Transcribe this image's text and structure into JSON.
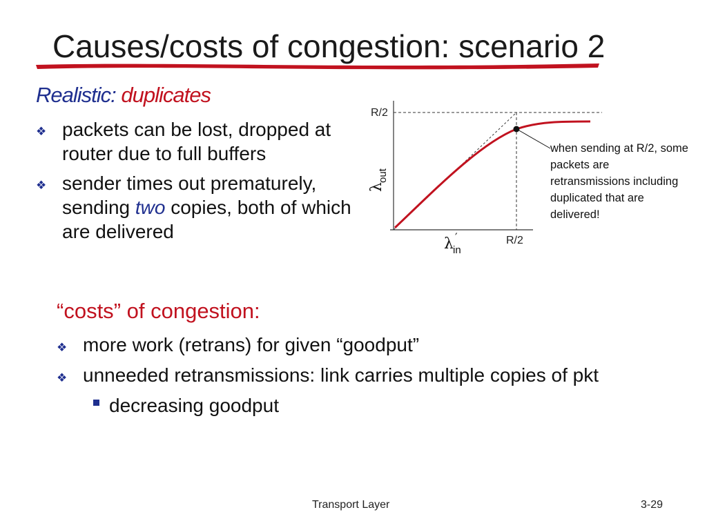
{
  "slide": {
    "title": "Causes/costs of congestion: scenario 2",
    "subhead_prefix": "Realistic:",
    "subhead_suffix": "duplicates",
    "bullets": [
      {
        "text": "packets can be lost, dropped at router due  to full buffers"
      },
      {
        "pre": "sender times out prematurely, sending ",
        "em": "two",
        "post": " copies, both of which are delivered"
      }
    ],
    "costs": {
      "q_open": "“",
      "word": "costs",
      "q_close": "”",
      "rest": " of congestion:",
      "items": [
        "more work (retrans) for given “goodput”",
        "unneeded retransmissions: link carries multiple copies of pkt"
      ],
      "sub_items": [
        "decreasing goodput"
      ]
    },
    "footer": "Transport Layer",
    "page_number": "3-29"
  },
  "chart_data": {
    "type": "line",
    "x_tick_labels": [
      "R/2"
    ],
    "y_tick_labels": [
      "R/2"
    ],
    "xlabel_sym": "λ",
    "xlabel_sub": "in",
    "xlabel_mark": "′",
    "ylabel_sym": "λ",
    "ylabel_sub": "out",
    "annotation": "when sending at R/2, some packets are retransmissions including duplicated that are delivered!",
    "colors": {
      "curve": "#c1121f",
      "axis": "#333333",
      "guide": "#333333"
    }
  }
}
